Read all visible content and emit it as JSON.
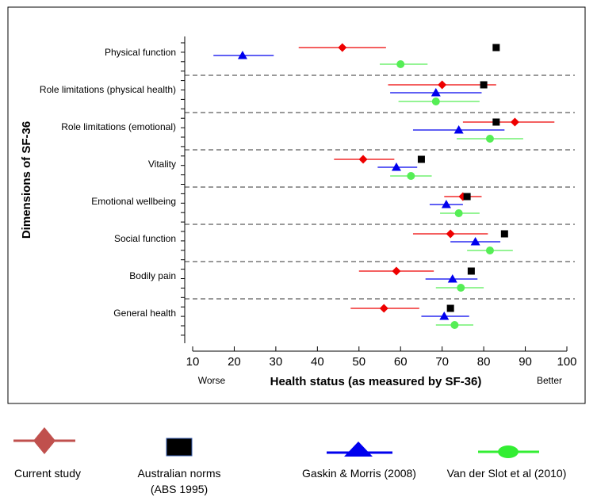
{
  "chart_data": {
    "type": "scatter",
    "xlabel": "Health status (as measured by SF-36)",
    "ylabel": "Dimensions of SF-36",
    "xlim": [
      10,
      100
    ],
    "xticks": [
      10,
      20,
      30,
      40,
      50,
      60,
      70,
      80,
      90,
      100
    ],
    "x_left_note": "Worse",
    "x_right_note": "Better",
    "grid": false,
    "legend_position": "bottom",
    "categories": [
      "Physical function",
      "Role limitations (physical health)",
      "Role limitations (emotional)",
      "Vitality",
      "Emotional wellbeing",
      "Social function",
      "Bodily pain",
      "General health"
    ],
    "series": [
      {
        "name": "Current study",
        "marker": "diamond",
        "color": "#ee0000",
        "values": [
          46,
          70,
          87.5,
          51,
          75,
          72,
          59,
          56
        ],
        "low": [
          35.5,
          57,
          75,
          44,
          70.5,
          63,
          50,
          48
        ],
        "high": [
          56.5,
          83,
          97,
          58.5,
          79.5,
          81,
          68,
          64.5
        ]
      },
      {
        "name": "Australian norms (ABS 1995)",
        "legend_lines": [
          "Australian norms",
          "(ABS 1995)"
        ],
        "marker": "square",
        "color": "#000000",
        "values": [
          83,
          80,
          83,
          65,
          76,
          85,
          77,
          72
        ],
        "low": [
          null,
          null,
          null,
          null,
          null,
          null,
          null,
          null
        ],
        "high": [
          null,
          null,
          null,
          null,
          null,
          null,
          null,
          null
        ]
      },
      {
        "name": "Gaskin & Morris (2008)",
        "marker": "triangle",
        "color": "#0000ee",
        "values": [
          22,
          68.5,
          74,
          59,
          71,
          78,
          72.5,
          70.5
        ],
        "low": [
          15,
          57.5,
          63,
          54.5,
          67,
          72,
          66,
          65
        ],
        "high": [
          29.5,
          79.5,
          85,
          64,
          75,
          84,
          78.5,
          76.5
        ]
      },
      {
        "name": "Van der Slot et al (2010)",
        "marker": "circle",
        "color": "#55ee55",
        "values": [
          60,
          68.5,
          81.5,
          62.5,
          74,
          81.5,
          74.5,
          73
        ],
        "low": [
          55,
          59.5,
          73.5,
          57.5,
          69.5,
          76,
          68.5,
          68.5
        ],
        "high": [
          66.5,
          79,
          89.5,
          67.5,
          79,
          87,
          80,
          77.5
        ]
      }
    ]
  }
}
